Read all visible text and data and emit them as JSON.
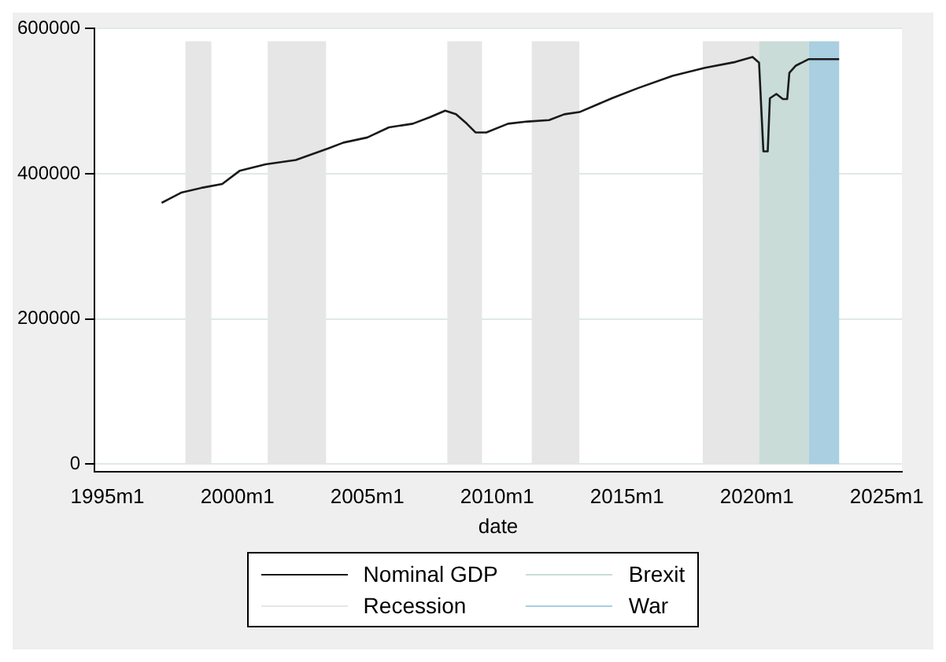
{
  "chart_data": {
    "type": "line",
    "xlabel": "date",
    "legend": "bottom",
    "grid": "y",
    "xlim": [
      "1994-07",
      "2025-08"
    ],
    "ylim": [
      -10000,
      600000
    ],
    "xticks": [
      {
        "value": "1995-01",
        "label": "1995m1"
      },
      {
        "value": "2000-01",
        "label": "2000m1"
      },
      {
        "value": "2005-01",
        "label": "2005m1"
      },
      {
        "value": "2010-01",
        "label": "2010m1"
      },
      {
        "value": "2015-01",
        "label": "2015m1"
      },
      {
        "value": "2020-01",
        "label": "2020m1"
      },
      {
        "value": "2025-01",
        "label": "2025m1"
      }
    ],
    "yticks": [
      0,
      200000,
      400000,
      600000
    ],
    "series": [
      {
        "name": "Nominal GDP",
        "color": "#1a1a1a",
        "x": [
          "1997-02",
          "1997-11",
          "1998-09",
          "1999-06",
          "2000-02",
          "2001-02",
          "2002-04",
          "2003-07",
          "2004-02",
          "2005-01",
          "2005-11",
          "2006-10",
          "2007-06",
          "2008-01",
          "2008-06",
          "2008-11",
          "2009-03",
          "2009-08",
          "2010-06",
          "2011-03",
          "2012-01",
          "2012-08",
          "2013-03",
          "2014-06",
          "2015-06",
          "2016-10",
          "2018-01",
          "2019-03",
          "2019-11",
          "2020-02",
          "2020-04",
          "2020-06",
          "2020-07",
          "2020-10",
          "2021-01",
          "2021-03",
          "2021-04",
          "2021-07",
          "2022-01",
          "2023-03"
        ],
        "values": [
          360000,
          374000,
          381000,
          386000,
          404000,
          413000,
          419000,
          435000,
          443000,
          450000,
          464000,
          469000,
          478000,
          487000,
          482000,
          469000,
          457000,
          457000,
          469000,
          472000,
          474000,
          482000,
          485000,
          504000,
          518000,
          535000,
          546000,
          554000,
          561000,
          553000,
          431000,
          431000,
          504000,
          510000,
          503000,
          503000,
          539000,
          549000,
          558000,
          558000
        ]
      }
    ],
    "bands": [
      {
        "axis": "x",
        "from": "1998-01",
        "to": "1999-01",
        "label": "Recession",
        "color": "#e6e6e6"
      },
      {
        "axis": "x",
        "from": "2001-03",
        "to": "2003-06",
        "color": "#e6e6e6"
      },
      {
        "axis": "x",
        "from": "2008-02",
        "to": "2009-06",
        "color": "#e6e6e6"
      },
      {
        "axis": "x",
        "from": "2011-05",
        "to": "2013-03",
        "color": "#e6e6e6"
      },
      {
        "axis": "x",
        "from": "2017-12",
        "to": "2020-02",
        "color": "#e6e6e6"
      },
      {
        "axis": "x",
        "from": "2020-02",
        "to": "2022-01",
        "label": "Brexit",
        "color": "#c9dcd8"
      },
      {
        "axis": "x",
        "from": "2022-01",
        "to": "2023-03",
        "label": "War",
        "color": "#a9cfe0"
      }
    ]
  }
}
